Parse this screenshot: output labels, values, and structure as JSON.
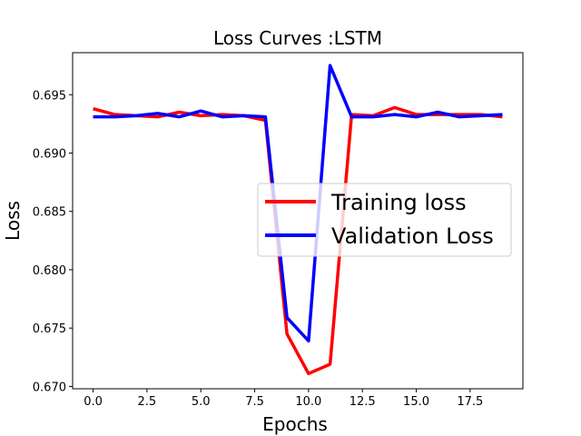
{
  "chart_data": {
    "type": "line",
    "title": "Loss Curves :LSTM",
    "xlabel": "Epochs",
    "ylabel": "Loss",
    "xlim": [
      -0.95,
      19.95
    ],
    "ylim": [
      0.6698,
      0.6986
    ],
    "xticks": [
      0.0,
      2.5,
      5.0,
      7.5,
      10.0,
      12.5,
      15.0,
      17.5
    ],
    "xtick_labels": [
      "0.0",
      "2.5",
      "5.0",
      "7.5",
      "10.0",
      "12.5",
      "15.0",
      "17.5"
    ],
    "yticks": [
      0.67,
      0.675,
      0.68,
      0.685,
      0.69,
      0.695
    ],
    "ytick_labels": [
      "0.670",
      "0.675",
      "0.680",
      "0.685",
      "0.690",
      "0.695"
    ],
    "grid": false,
    "legend_position": "center-right",
    "x": [
      0,
      1,
      2,
      3,
      4,
      5,
      6,
      7,
      8,
      9,
      10,
      11,
      12,
      13,
      14,
      15,
      16,
      17,
      18,
      19
    ],
    "series": [
      {
        "name": "Training loss",
        "color": "#ff0000",
        "values": [
          0.6938,
          0.6933,
          0.6932,
          0.6931,
          0.6935,
          0.6932,
          0.6933,
          0.6932,
          0.6928,
          0.6745,
          0.6711,
          0.6719,
          0.6933,
          0.6932,
          0.6939,
          0.6933,
          0.6933,
          0.6933,
          0.6933,
          0.6931
        ]
      },
      {
        "name": "Validation Loss",
        "color": "#0000ff",
        "values": [
          0.6931,
          0.6931,
          0.6932,
          0.6934,
          0.6931,
          0.6936,
          0.6931,
          0.6932,
          0.6931,
          0.6759,
          0.6739,
          0.6975,
          0.6931,
          0.6931,
          0.6933,
          0.6931,
          0.6935,
          0.6931,
          0.6932,
          0.6933
        ]
      }
    ]
  }
}
